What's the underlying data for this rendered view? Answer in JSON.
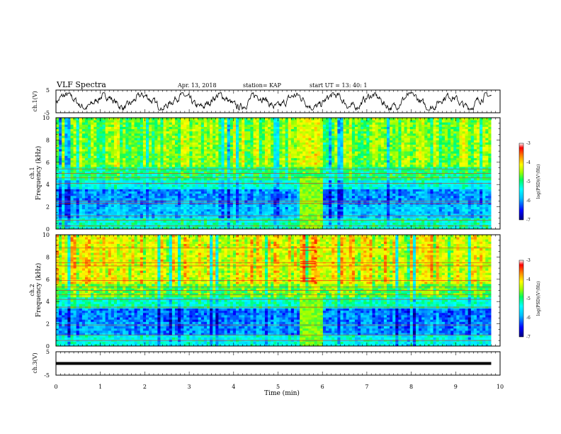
{
  "header": {
    "title": "VLF Spectra",
    "date": "Apr. 13, 2018",
    "station": "station= KAP",
    "start_time": "start  UT =   13: 40: 1"
  },
  "colors": {
    "spectrum_scale": [
      "#000080",
      "#0000ff",
      "#00bfff",
      "#00ffff",
      "#00ff80",
      "#80ff00",
      "#ffff00",
      "#ff8000",
      "#ff0000",
      "#ffffff"
    ],
    "trace": "#000000"
  },
  "chart_data": [
    {
      "type": "line",
      "name": "ch1-waveform",
      "ylabel": "ch.1(V)",
      "ylim": [
        -5,
        5
      ],
      "yticks": [
        "5",
        "-5"
      ],
      "description_values": "noisy voltage trace, mean about 0, amplitude about ±2 V",
      "x_range_min": [
        0,
        9.8
      ]
    },
    {
      "type": "heatmap",
      "name": "ch1-spectrogram",
      "ylabel": "ch.1\nFrequency  (kHz)",
      "ylim": [
        0,
        10
      ],
      "yticks": [
        "0",
        "2",
        "4",
        "6",
        "8",
        "10"
      ],
      "xlim_min": [
        0,
        9.8
      ],
      "colorbar": {
        "label": "log(PSD)(V²/Hz)",
        "ticks": [
          "-3",
          "-4",
          "-5",
          "-6",
          "-7"
        ],
        "range": [
          -7,
          -3
        ]
      },
      "bands_kHz": [
        {
          "range": [
            0,
            1
          ],
          "level": -5.2
        },
        {
          "range": [
            1,
            2.2
          ],
          "level": -5.8
        },
        {
          "range": [
            2.2,
            3.6
          ],
          "level": -6.0
        },
        {
          "range": [
            3.6,
            4.5
          ],
          "level": -5.4
        },
        {
          "range": [
            4.5,
            5.6
          ],
          "level": -5.0
        },
        {
          "range": [
            5.6,
            10
          ],
          "level": -4.6
        }
      ],
      "lines_kHz": [
        0.3,
        0.8,
        1.2,
        2.3,
        2.5,
        4.1,
        4.6,
        5.0,
        5.4
      ],
      "burst_min": [
        5.5,
        6.0
      ]
    },
    {
      "type": "heatmap",
      "name": "ch2-spectrogram",
      "ylabel": "ch.2\nFrequency  (kHz)",
      "ylim": [
        0,
        10
      ],
      "yticks": [
        "0",
        "2",
        "4",
        "6",
        "8",
        "10"
      ],
      "xlim_min": [
        0,
        9.8
      ],
      "colorbar": {
        "label": "log(PSD)(V²/Hz)",
        "ticks": [
          "-3",
          "-4",
          "-5",
          "-6",
          "-7"
        ],
        "range": [
          -7,
          -3
        ]
      },
      "bands_kHz": [
        {
          "range": [
            0,
            1
          ],
          "level": -5.4
        },
        {
          "range": [
            1,
            2.2
          ],
          "level": -6.0
        },
        {
          "range": [
            2.2,
            3.4
          ],
          "level": -6.1
        },
        {
          "range": [
            3.4,
            4.5
          ],
          "level": -5.2
        },
        {
          "range": [
            4.5,
            5.6
          ],
          "level": -4.7
        },
        {
          "range": [
            5.6,
            10
          ],
          "level": -4.2
        }
      ],
      "lines_kHz": [
        0.5,
        1.0,
        1.9,
        3.5,
        4.2,
        4.6,
        5.0,
        5.3,
        5.9,
        7.2,
        7.5,
        8.8
      ],
      "burst_min": [
        5.5,
        6.0
      ]
    },
    {
      "type": "line",
      "name": "ch3-waveform",
      "ylabel": "ch.3(V)",
      "ylim": [
        -5,
        5
      ],
      "yticks": [
        "5",
        "-5"
      ],
      "constant_value": 0,
      "x_range_min": [
        0,
        9.8
      ]
    }
  ],
  "xaxis": {
    "label": "Time  (min)",
    "range": [
      0,
      10
    ],
    "ticks": [
      "0",
      "1",
      "2",
      "3",
      "4",
      "5",
      "6",
      "7",
      "8",
      "9",
      "10"
    ]
  }
}
